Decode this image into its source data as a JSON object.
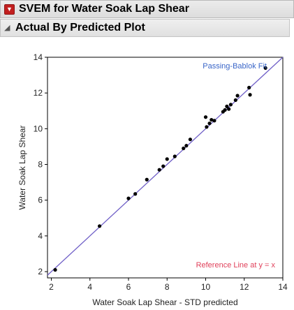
{
  "report": {
    "title": "SVEM for Water Soak Lap Shear",
    "section_title": "Actual By Predicted Plot"
  },
  "chart_data": {
    "type": "scatter",
    "xlabel": "Water Soak Lap Shear - STD predicted",
    "ylabel": "Water Soak Lap Shear",
    "xlim": [
      1.8,
      14
    ],
    "ylim": [
      1.65,
      14
    ],
    "xticks": [
      2,
      4,
      6,
      8,
      10,
      12,
      14
    ],
    "yticks": [
      2,
      4,
      6,
      8,
      10,
      12,
      14
    ],
    "grid": false,
    "annotations": {
      "fit_label": "Passing-Bablok Fit",
      "reference_label": "Reference Line at y = x"
    },
    "colors": {
      "fit_line": "#6f5fc7",
      "reference_line": "#e0405a",
      "fit_label": "#3a66c8",
      "reference_label": "#e0405a",
      "points": "#000000"
    },
    "points": [
      {
        "x": 2.2,
        "y": 2.1
      },
      {
        "x": 4.5,
        "y": 4.55
      },
      {
        "x": 6.0,
        "y": 6.1
      },
      {
        "x": 6.35,
        "y": 6.35
      },
      {
        "x": 6.95,
        "y": 7.15
      },
      {
        "x": 7.6,
        "y": 7.7
      },
      {
        "x": 7.8,
        "y": 7.9
      },
      {
        "x": 8.0,
        "y": 8.3
      },
      {
        "x": 8.4,
        "y": 8.45
      },
      {
        "x": 8.85,
        "y": 8.9
      },
      {
        "x": 9.0,
        "y": 9.05
      },
      {
        "x": 9.2,
        "y": 9.4
      },
      {
        "x": 10.0,
        "y": 10.65
      },
      {
        "x": 10.05,
        "y": 10.1
      },
      {
        "x": 10.2,
        "y": 10.3
      },
      {
        "x": 10.3,
        "y": 10.5
      },
      {
        "x": 10.45,
        "y": 10.45
      },
      {
        "x": 10.9,
        "y": 10.95
      },
      {
        "x": 11.0,
        "y": 11.05
      },
      {
        "x": 11.1,
        "y": 11.25
      },
      {
        "x": 11.2,
        "y": 11.1
      },
      {
        "x": 11.3,
        "y": 11.35
      },
      {
        "x": 11.55,
        "y": 11.6
      },
      {
        "x": 11.65,
        "y": 11.85
      },
      {
        "x": 12.25,
        "y": 12.3
      },
      {
        "x": 12.3,
        "y": 11.9
      },
      {
        "x": 13.1,
        "y": 13.4
      }
    ],
    "fit_line": {
      "x": [
        1.8,
        14
      ],
      "y": [
        1.8,
        14
      ]
    }
  }
}
